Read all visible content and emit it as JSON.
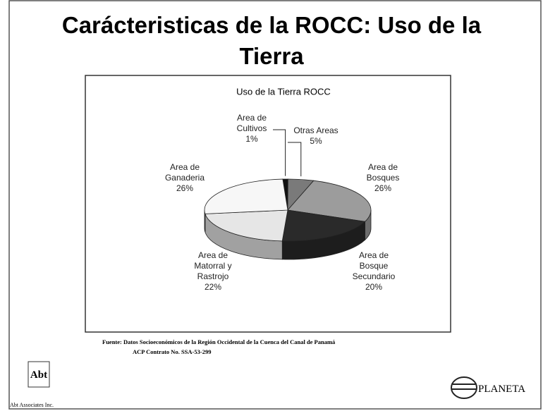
{
  "slide_title": "Carácteristicas de la ROCC: Uso de la Tierra",
  "chart_data": {
    "type": "pie",
    "title": "Uso de la Tierra ROCC",
    "categories": [
      "Area de Cultivos",
      "Otras Areas",
      "Area de Bosques",
      "Area de Bosque Secundario",
      "Area de Matorral y Rastrojo",
      "Area de Ganaderia"
    ],
    "values": [
      1,
      5,
      26,
      20,
      22,
      26
    ],
    "value_labels": [
      "1%",
      "5%",
      "26%",
      "20%",
      "22%",
      "26%"
    ],
    "colors": [
      "#111111",
      "#7a7a7a",
      "#9c9c9c",
      "#2a2a2a",
      "#e6e6e6",
      "#f7f7f7"
    ]
  },
  "source": [
    "Fuente: Datos Socioeconómicos de la Región Occidental de la Cuenca del Canal de Panamá",
    "ACP Contrato No. SSA-53-299"
  ],
  "logos": {
    "abt": "Abt",
    "abt_name": "Abt Associates Inc.",
    "planeta": "PLANETA"
  }
}
